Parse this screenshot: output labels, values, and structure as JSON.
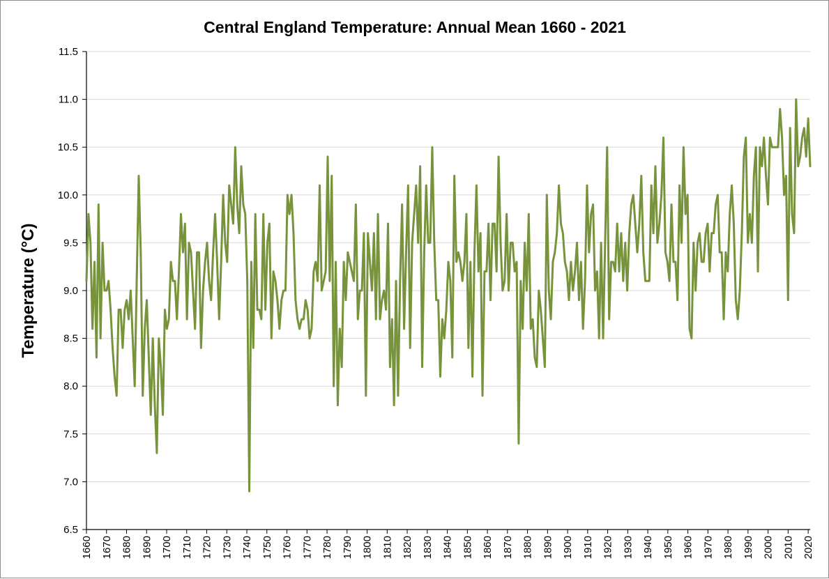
{
  "chart_data": {
    "type": "line",
    "title": "Central England Temperature: Annual Mean 1660 - 2021",
    "xlabel": "",
    "ylabel": "Temperature (°C)",
    "xlim": [
      1660,
      2021
    ],
    "ylim": [
      6.5,
      11.5
    ],
    "yticks": [
      "6.5",
      "7.0",
      "7.5",
      "8.0",
      "8.5",
      "9.0",
      "9.5",
      "10.0",
      "10.5",
      "11.0",
      "11.5"
    ],
    "xticks": [
      "1660",
      "1670",
      "1680",
      "1690",
      "1700",
      "1710",
      "1720",
      "1730",
      "1740",
      "1750",
      "1760",
      "1770",
      "1780",
      "1790",
      "1800",
      "1810",
      "1820",
      "1830",
      "1840",
      "1850",
      "1860",
      "1870",
      "1880",
      "1890",
      "1900",
      "1910",
      "1920",
      "1930",
      "1940",
      "1950",
      "1960",
      "1970",
      "1980",
      "1990",
      "2000",
      "2010",
      "2020"
    ],
    "grid": true,
    "colors": {
      "line": "#77933C",
      "grid": "#d9d9d9",
      "axis": "#000000"
    },
    "series": [
      {
        "name": "Annual mean",
        "x_start": 1660,
        "values": [
          9.1,
          9.8,
          9.5,
          8.6,
          9.3,
          8.3,
          9.9,
          8.5,
          9.5,
          9.0,
          9.0,
          9.1,
          8.8,
          8.4,
          8.1,
          7.9,
          8.8,
          8.8,
          8.4,
          8.8,
          8.9,
          8.7,
          9.0,
          8.5,
          8.0,
          9.1,
          10.2,
          9.4,
          7.9,
          8.6,
          8.9,
          8.3,
          7.7,
          8.5,
          7.8,
          7.3,
          8.5,
          8.2,
          7.7,
          8.8,
          8.6,
          8.7,
          9.3,
          9.1,
          9.1,
          8.7,
          9.2,
          9.8,
          9.4,
          9.7,
          8.7,
          9.5,
          9.4,
          9.0,
          8.6,
          9.4,
          9.4,
          8.4,
          9.0,
          9.3,
          9.5,
          9.1,
          8.9,
          9.4,
          9.8,
          9.3,
          8.7,
          9.3,
          10.0,
          9.5,
          9.3,
          10.1,
          9.9,
          9.7,
          10.5,
          9.9,
          9.6,
          10.3,
          9.9,
          9.8,
          9.1,
          6.9,
          9.3,
          8.4,
          9.8,
          8.8,
          8.8,
          8.7,
          9.8,
          8.8,
          9.5,
          9.7,
          8.5,
          9.2,
          9.1,
          8.9,
          8.6,
          8.9,
          9.0,
          9.0,
          10.0,
          9.8,
          10.0,
          9.6,
          8.9,
          8.7,
          8.6,
          8.7,
          8.7,
          8.9,
          8.8,
          8.5,
          8.6,
          9.2,
          9.3,
          9.1,
          10.1,
          9.0,
          9.1,
          9.2,
          10.4,
          9.1,
          10.2,
          8.0,
          9.3,
          7.8,
          8.6,
          8.2,
          9.3,
          8.9,
          9.4,
          9.3,
          9.2,
          9.1,
          9.9,
          8.7,
          9.0,
          9.0,
          9.6,
          7.9,
          9.6,
          9.3,
          9.0,
          9.6,
          8.7,
          9.8,
          8.7,
          8.9,
          9.0,
          8.8,
          9.7,
          8.2,
          8.7,
          7.8,
          9.1,
          7.9,
          9.1,
          9.9,
          8.6,
          9.4,
          10.1,
          8.4,
          9.5,
          9.8,
          10.1,
          9.5,
          10.3,
          8.2,
          9.4,
          10.1,
          9.5,
          9.5,
          10.5,
          9.5,
          8.9,
          8.9,
          8.1,
          8.7,
          8.5,
          8.8,
          9.3,
          9.1,
          8.3,
          10.2,
          9.3,
          9.4,
          9.3,
          9.1,
          9.3,
          9.8,
          8.4,
          9.3,
          8.1,
          9.4,
          10.1,
          9.2,
          9.6,
          7.9,
          9.2,
          9.2,
          9.7,
          8.9,
          9.7,
          9.7,
          9.2,
          10.4,
          9.5,
          9.0,
          9.1,
          9.8,
          9.0,
          9.5,
          9.5,
          9.2,
          9.3,
          7.4,
          9.1,
          8.6,
          9.5,
          9.0,
          9.8,
          8.6,
          8.7,
          8.3,
          8.2,
          9.0,
          8.8,
          8.5,
          8.2,
          10.0,
          9.0,
          8.7,
          9.3,
          9.4,
          9.6,
          10.1,
          9.7,
          9.6,
          9.3,
          9.2,
          8.9,
          9.3,
          9.0,
          9.2,
          9.5,
          8.9,
          9.3,
          8.6,
          9.1,
          10.1,
          9.4,
          9.8,
          9.9,
          9.0,
          9.2,
          8.5,
          9.5,
          8.5,
          9.5,
          10.5,
          8.7,
          9.3,
          9.3,
          9.2,
          9.7,
          9.2,
          9.6,
          9.1,
          9.5,
          9.0,
          9.6,
          9.9,
          10.0,
          9.7,
          9.4,
          9.7,
          10.2,
          9.4,
          9.1,
          9.1,
          9.1,
          10.1,
          9.6,
          10.3,
          9.5,
          9.7,
          10.0,
          10.6,
          9.4,
          9.3,
          9.1,
          9.9,
          9.3,
          9.3,
          8.9,
          10.1,
          9.5,
          10.5,
          9.8,
          10.0,
          8.6,
          8.5,
          9.5,
          9.0,
          9.5,
          9.6,
          9.3,
          9.3,
          9.6,
          9.7,
          9.2,
          9.6,
          9.6,
          9.9,
          10.0,
          9.4,
          9.4,
          8.7,
          9.4,
          9.2,
          9.8,
          10.1,
          9.7,
          8.9,
          8.7,
          9.0,
          9.6,
          10.4,
          10.6,
          9.5,
          9.8,
          9.5,
          10.2,
          10.5,
          9.2,
          10.5,
          10.3,
          10.6,
          10.2,
          9.9,
          10.6,
          10.5,
          10.5,
          10.5,
          10.5,
          10.9,
          10.6,
          10.0,
          10.2,
          8.9,
          10.7,
          9.8,
          9.6,
          11.0,
          10.3,
          10.4,
          10.6,
          10.7,
          10.4,
          10.8,
          10.3
        ]
      }
    ]
  }
}
